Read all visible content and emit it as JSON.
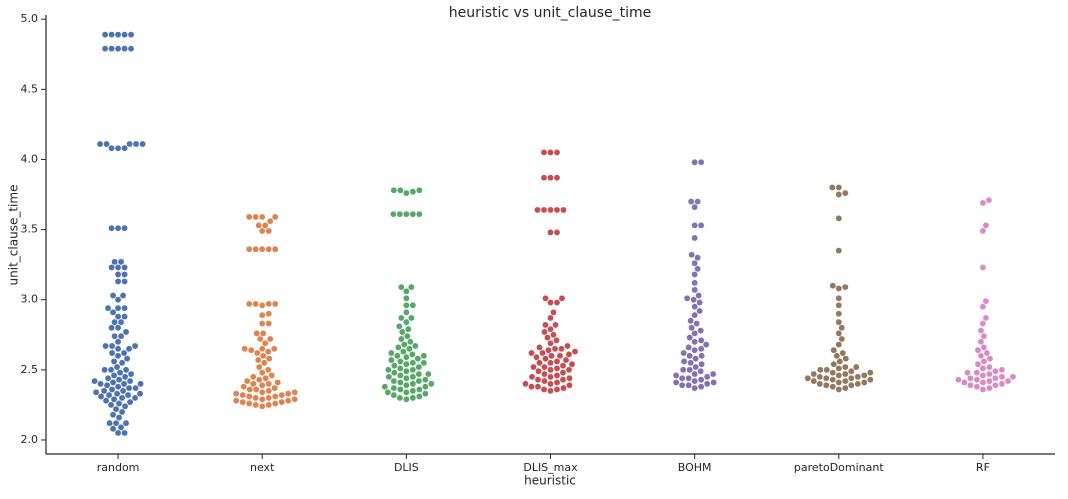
{
  "chart_data": {
    "type": "swarm",
    "title": "heuristic vs unit_clause_time",
    "x_label": "heuristic",
    "y_label": "unit_clause_time",
    "categories": [
      "random",
      "next",
      "DLIS",
      "DLIS_max",
      "BOHM",
      "paretoDominant",
      "RF"
    ],
    "colors": [
      "#4c72b0",
      "#dd8452",
      "#55a868",
      "#c44e52",
      "#8172b3",
      "#937860",
      "#da8bc3"
    ],
    "ylim": [
      1.9,
      5.03
    ],
    "yticks": [
      {
        "value": 2,
        "label": "2.0"
      },
      {
        "value": 2.5,
        "label": "2.5"
      },
      {
        "value": 3,
        "label": "3.0"
      },
      {
        "value": 3.5,
        "label": "3.5"
      },
      {
        "value": 4,
        "label": "4.0"
      },
      {
        "value": 4.5,
        "label": "4.5"
      },
      {
        "value": 5,
        "label": "5.0"
      }
    ],
    "values": [
      [
        4.89,
        4.89,
        4.89,
        4.89,
        4.89,
        4.79,
        4.79,
        4.79,
        4.79,
        4.79,
        4.11,
        4.11,
        4.11,
        4.11,
        4.11,
        4.08,
        4.08,
        4.08,
        3.51,
        3.51,
        3.51,
        3.27,
        3.27,
        3.23,
        3.23,
        3.23,
        3.18,
        3.18,
        3.13,
        3.13,
        3.03,
        3.03,
        3.0,
        2.94,
        2.94,
        2.94,
        2.91,
        2.88,
        2.88,
        2.84,
        2.84,
        2.8,
        2.8,
        2.77,
        2.74,
        2.74,
        2.7,
        2.67,
        2.67,
        2.67,
        2.65,
        2.65,
        2.62,
        2.62,
        2.6,
        2.58,
        2.56,
        2.55,
        2.52,
        2.5,
        2.5,
        2.5,
        2.48,
        2.47,
        2.46,
        2.45,
        2.44,
        2.43,
        2.42,
        2.42,
        2.41,
        2.4,
        2.4,
        2.4,
        2.39,
        2.38,
        2.37,
        2.37,
        2.36,
        2.35,
        2.35,
        2.34,
        2.33,
        2.33,
        2.32,
        2.32,
        2.31,
        2.3,
        2.3,
        2.29,
        2.28,
        2.27,
        2.26,
        2.25,
        2.24,
        2.22,
        2.2,
        2.18,
        2.16,
        2.12,
        2.12,
        2.12,
        2.09,
        2.08,
        2.05,
        2.05
      ],
      [
        3.59,
        3.59,
        3.59,
        3.59,
        3.56,
        3.53,
        3.53,
        3.49,
        3.49,
        3.36,
        3.36,
        3.36,
        3.36,
        3.36,
        2.97,
        2.97,
        2.97,
        2.97,
        2.96,
        2.9,
        2.89,
        2.83,
        2.83,
        2.76,
        2.76,
        2.72,
        2.72,
        2.69,
        2.65,
        2.65,
        2.65,
        2.64,
        2.63,
        2.62,
        2.6,
        2.58,
        2.57,
        2.55,
        2.52,
        2.5,
        2.48,
        2.46,
        2.45,
        2.44,
        2.43,
        2.42,
        2.41,
        2.4,
        2.4,
        2.39,
        2.38,
        2.37,
        2.36,
        2.36,
        2.35,
        2.34,
        2.34,
        2.33,
        2.33,
        2.32,
        2.32,
        2.31,
        2.31,
        2.3,
        2.3,
        2.29,
        2.29,
        2.28,
        2.28,
        2.27,
        2.27,
        2.26,
        2.26,
        2.25,
        2.25,
        2.24
      ],
      [
        3.78,
        3.78,
        3.78,
        3.77,
        3.76,
        3.61,
        3.61,
        3.61,
        3.61,
        3.61,
        3.09,
        3.09,
        3.06,
        3.01,
        2.96,
        2.96,
        2.91,
        2.87,
        2.87,
        2.84,
        2.81,
        2.79,
        2.77,
        2.74,
        2.72,
        2.7,
        2.68,
        2.67,
        2.66,
        2.65,
        2.63,
        2.62,
        2.61,
        2.6,
        2.59,
        2.58,
        2.57,
        2.56,
        2.55,
        2.54,
        2.53,
        2.52,
        2.51,
        2.5,
        2.49,
        2.48,
        2.47,
        2.46,
        2.45,
        2.44,
        2.43,
        2.42,
        2.41,
        2.4,
        2.39,
        2.38,
        2.37,
        2.36,
        2.35,
        2.34,
        2.33,
        2.32,
        2.31,
        2.3,
        2.3,
        2.29,
        2.45,
        2.42,
        2.4,
        2.38,
        2.36,
        2.34,
        2.6,
        2.55,
        2.5,
        2.47
      ],
      [
        4.05,
        4.05,
        4.05,
        3.87,
        3.87,
        3.87,
        3.64,
        3.64,
        3.64,
        3.64,
        3.64,
        3.48,
        3.48,
        3.01,
        3.01,
        2.98,
        2.98,
        2.91,
        2.87,
        2.82,
        2.82,
        2.79,
        2.77,
        2.75,
        2.73,
        2.71,
        2.69,
        2.67,
        2.66,
        2.65,
        2.64,
        2.63,
        2.62,
        2.61,
        2.6,
        2.59,
        2.58,
        2.57,
        2.56,
        2.55,
        2.54,
        2.53,
        2.52,
        2.51,
        2.5,
        2.49,
        2.48,
        2.47,
        2.46,
        2.45,
        2.44,
        2.43,
        2.42,
        2.41,
        2.4,
        2.39,
        2.38,
        2.37,
        2.36,
        2.35,
        2.65,
        2.6,
        2.55,
        2.5,
        2.45,
        2.4,
        2.38,
        2.36,
        2.62,
        2.52,
        2.43
      ],
      [
        3.98,
        3.98,
        3.7,
        3.7,
        3.66,
        3.53,
        3.53,
        3.44,
        3.32,
        3.3,
        3.26,
        3.22,
        3.18,
        3.12,
        3.07,
        3.03,
        3.01,
        3.0,
        2.98,
        2.95,
        2.92,
        2.89,
        2.85,
        2.83,
        2.8,
        2.78,
        2.76,
        2.73,
        2.71,
        2.68,
        2.66,
        2.64,
        2.62,
        2.6,
        2.58,
        2.56,
        2.54,
        2.52,
        2.5,
        2.49,
        2.47,
        2.46,
        2.45,
        2.44,
        2.43,
        2.42,
        2.41,
        2.4,
        2.39,
        2.38,
        2.37,
        2.6,
        2.55,
        2.5,
        2.47,
        2.44,
        2.41,
        2.39,
        2.7,
        2.65
      ],
      [
        3.8,
        3.8,
        3.76,
        3.75,
        3.58,
        3.35,
        3.1,
        3.09,
        3.08,
        3.01,
        2.96,
        2.9,
        2.84,
        2.8,
        2.76,
        2.72,
        2.68,
        2.64,
        2.62,
        2.6,
        2.58,
        2.56,
        2.54,
        2.52,
        2.51,
        2.5,
        2.49,
        2.48,
        2.47,
        2.46,
        2.45,
        2.44,
        2.43,
        2.42,
        2.41,
        2.4,
        2.39,
        2.38,
        2.37,
        2.36,
        2.52,
        2.48,
        2.46,
        2.44,
        2.42,
        2.41,
        2.4,
        2.5,
        2.45,
        2.43,
        2.39,
        2.47,
        2.44
      ],
      [
        3.71,
        3.69,
        3.53,
        3.49,
        3.23,
        2.99,
        2.95,
        2.87,
        2.83,
        2.78,
        2.74,
        2.7,
        2.66,
        2.64,
        2.62,
        2.6,
        2.58,
        2.56,
        2.54,
        2.52,
        2.51,
        2.5,
        2.49,
        2.48,
        2.47,
        2.46,
        2.45,
        2.44,
        2.43,
        2.43,
        2.42,
        2.42,
        2.41,
        2.4,
        2.39,
        2.38,
        2.37,
        2.36,
        2.48,
        2.45,
        2.44,
        2.41,
        2.39
      ]
    ]
  }
}
